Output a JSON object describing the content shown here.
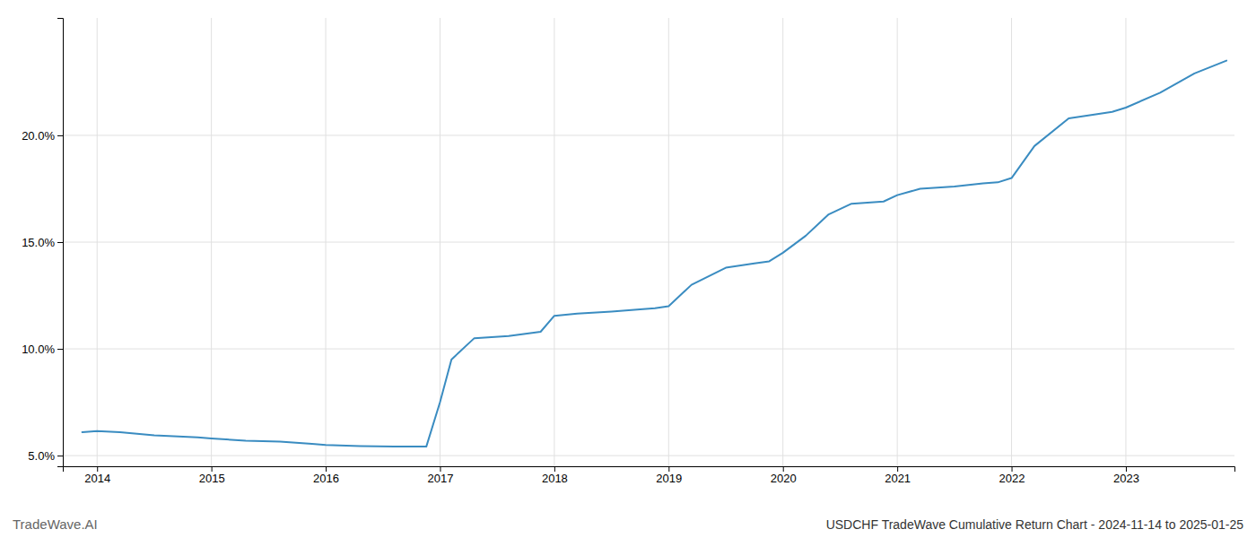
{
  "chart_data": {
    "type": "line",
    "title": "USDCHF TradeWave Cumulative Return Chart - 2024-11-14 to 2025-01-25",
    "annotations": [
      "TradeWave.AI"
    ],
    "color": "#3a8cc1",
    "grid": true,
    "x": [
      2013.87,
      2014.0,
      2014.2,
      2014.5,
      2014.88,
      2015.0,
      2015.3,
      2015.6,
      2015.88,
      2016.0,
      2016.3,
      2016.6,
      2016.75,
      2016.88,
      2017.0,
      2017.1,
      2017.3,
      2017.6,
      2017.88,
      2018.0,
      2018.2,
      2018.5,
      2018.75,
      2018.88,
      2019.0,
      2019.2,
      2019.5,
      2019.75,
      2019.88,
      2020.0,
      2020.2,
      2020.4,
      2020.6,
      2020.88,
      2021.0,
      2021.2,
      2021.5,
      2021.75,
      2021.88,
      2022.0,
      2022.2,
      2022.5,
      2022.75,
      2022.88,
      2023.0,
      2023.3,
      2023.6,
      2023.88
    ],
    "values": [
      6.1,
      6.15,
      6.1,
      5.95,
      5.85,
      5.8,
      5.7,
      5.65,
      5.55,
      5.5,
      5.45,
      5.42,
      5.42,
      5.42,
      7.5,
      9.5,
      10.5,
      10.6,
      10.8,
      11.55,
      11.65,
      11.75,
      11.85,
      11.9,
      12.0,
      13.0,
      13.8,
      14.0,
      14.1,
      14.5,
      15.3,
      16.3,
      16.8,
      16.9,
      17.2,
      17.5,
      17.6,
      17.75,
      17.8,
      18.0,
      19.5,
      20.8,
      21.0,
      21.1,
      21.3,
      22.0,
      22.9,
      23.5
    ],
    "xlim": [
      2013.7,
      2023.95
    ],
    "xticks": [
      2014,
      2015,
      2016,
      2017,
      2018,
      2019,
      2020,
      2021,
      2022,
      2023
    ],
    "ylim": [
      4.5,
      25.5
    ],
    "yticks": [
      {
        "value": 5.0,
        "label": "5.0%"
      },
      {
        "value": 10.0,
        "label": "10.0%"
      },
      {
        "value": 15.0,
        "label": "15.0%"
      },
      {
        "value": 20.0,
        "label": "20.0%"
      }
    ]
  }
}
